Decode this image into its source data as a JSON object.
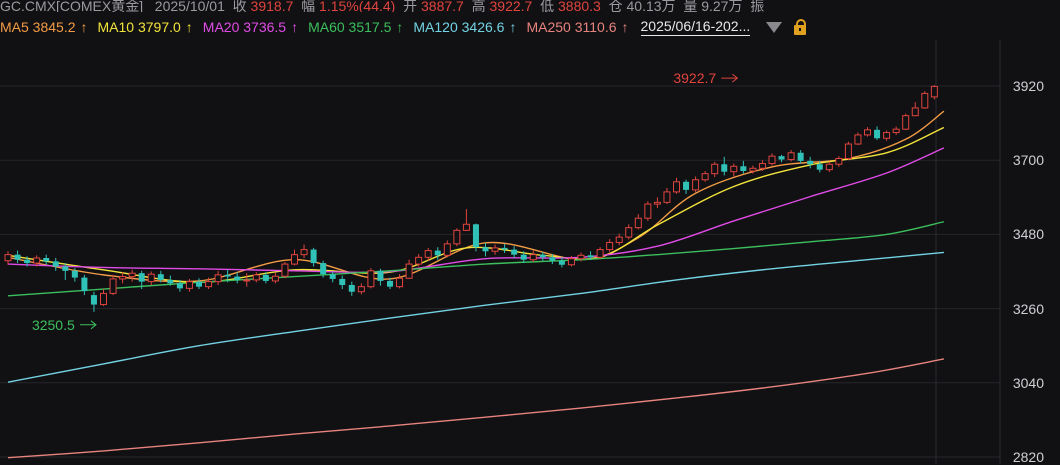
{
  "header": {
    "symbol": "GC.CMX[COMEX黄金]",
    "date": "2025/10/01",
    "close_label": "收",
    "close_value": "3918.7",
    "change_label": "幅",
    "change_value": "1.15%(44.4)",
    "open_label": "开",
    "open_value": "3887.7",
    "high_label": "高",
    "high_value": "3922.7",
    "low_label": "低",
    "low_value": "3880.3",
    "position_label": "仓",
    "position_value": "40.13万",
    "volume_label": "量",
    "volume_value": "9.27万",
    "amplitude_label": "振"
  },
  "legend": [
    {
      "label": "MA5 3845.2",
      "arrow": "↑",
      "color": "#f39c45"
    },
    {
      "label": "MA10 3797.0",
      "arrow": "↑",
      "color": "#f2e43a"
    },
    {
      "label": "MA20 3736.5",
      "arrow": "↑",
      "color": "#e04be6"
    },
    {
      "label": "MA60 3517.5",
      "arrow": "↑",
      "color": "#3cbf5c"
    },
    {
      "label": "MA120 3426.6",
      "arrow": "↑",
      "color": "#73d3e3"
    },
    {
      "label": "MA250 3110.6",
      "arrow": "↑",
      "color": "#e8837e"
    }
  ],
  "toolbar": {
    "date_range": "2025/06/16-202...",
    "dropdown_icon": "chevron-down-icon",
    "lock_icon": "lock-icon"
  },
  "chart_data": {
    "type": "candlestick",
    "y_ticks": [
      "3920",
      "3700",
      "3480",
      "3260",
      "3040",
      "2820"
    ],
    "ylim": [
      2820,
      3920
    ],
    "colors": {
      "up": "#e0443e",
      "down": "#31c2b7"
    },
    "annotations": [
      {
        "text": "3922.7",
        "price": 3922.7,
        "index": 77,
        "color": "#e0443e"
      },
      {
        "text": "3250.5",
        "price": 3250.5,
        "index": 9,
        "color": "#3cbf5c"
      }
    ],
    "candles": [
      [
        3402,
        3420,
        3430,
        3390
      ],
      [
        3420,
        3405,
        3432,
        3395
      ],
      [
        3405,
        3395,
        3415,
        3385
      ],
      [
        3395,
        3410,
        3418,
        3385
      ],
      [
        3410,
        3400,
        3420,
        3390
      ],
      [
        3400,
        3385,
        3410,
        3372
      ],
      [
        3385,
        3372,
        3395,
        3345
      ],
      [
        3372,
        3352,
        3380,
        3340
      ],
      [
        3352,
        3312,
        3360,
        3300
      ],
      [
        3300,
        3272,
        3310,
        3250.5
      ],
      [
        3272,
        3305,
        3318,
        3268
      ],
      [
        3305,
        3348,
        3360,
        3300
      ],
      [
        3348,
        3355,
        3368,
        3335
      ],
      [
        3355,
        3365,
        3375,
        3340
      ],
      [
        3365,
        3340,
        3372,
        3318
      ],
      [
        3340,
        3362,
        3370,
        3330
      ],
      [
        3362,
        3345,
        3372,
        3338
      ],
      [
        3345,
        3335,
        3358,
        3328
      ],
      [
        3335,
        3320,
        3345,
        3310
      ],
      [
        3320,
        3340,
        3348,
        3310
      ],
      [
        3340,
        3325,
        3350,
        3318
      ],
      [
        3325,
        3340,
        3352,
        3318
      ],
      [
        3340,
        3360,
        3372,
        3330
      ],
      [
        3360,
        3355,
        3375,
        3338
      ],
      [
        3355,
        3345,
        3368,
        3335
      ],
      [
        3345,
        3345,
        3365,
        3325
      ],
      [
        3345,
        3360,
        3368,
        3338
      ],
      [
        3360,
        3342,
        3368,
        3335
      ],
      [
        3342,
        3356,
        3366,
        3335
      ],
      [
        3356,
        3392,
        3398,
        3350
      ],
      [
        3392,
        3420,
        3435,
        3388
      ],
      [
        3420,
        3435,
        3450,
        3410
      ],
      [
        3435,
        3395,
        3440,
        3385
      ],
      [
        3395,
        3362,
        3402,
        3352
      ],
      [
        3362,
        3348,
        3370,
        3338
      ],
      [
        3348,
        3330,
        3358,
        3318
      ],
      [
        3330,
        3310,
        3340,
        3298
      ],
      [
        3310,
        3325,
        3335,
        3302
      ],
      [
        3325,
        3372,
        3380,
        3320
      ],
      [
        3372,
        3342,
        3378,
        3328
      ],
      [
        3342,
        3325,
        3352,
        3318
      ],
      [
        3325,
        3350,
        3362,
        3320
      ],
      [
        3350,
        3392,
        3405,
        3348
      ],
      [
        3392,
        3412,
        3422,
        3385
      ],
      [
        3412,
        3432,
        3440,
        3402
      ],
      [
        3432,
        3418,
        3442,
        3405
      ],
      [
        3418,
        3452,
        3462,
        3412
      ],
      [
        3452,
        3492,
        3498,
        3445
      ],
      [
        3492,
        3510,
        3555,
        3490
      ],
      [
        3510,
        3442,
        3512,
        3430
      ],
      [
        3442,
        3430,
        3455,
        3415
      ],
      [
        3430,
        3440,
        3450,
        3420
      ],
      [
        3440,
        3435,
        3452,
        3425
      ],
      [
        3435,
        3420,
        3445,
        3410
      ],
      [
        3420,
        3405,
        3430,
        3395
      ],
      [
        3405,
        3420,
        3432,
        3398
      ],
      [
        3420,
        3412,
        3428,
        3402
      ],
      [
        3412,
        3402,
        3422,
        3392
      ],
      [
        3402,
        3390,
        3412,
        3382
      ],
      [
        3390,
        3408,
        3416,
        3385
      ],
      [
        3408,
        3418,
        3426,
        3400
      ],
      [
        3418,
        3412,
        3430,
        3404
      ],
      [
        3412,
        3435,
        3442,
        3408
      ],
      [
        3435,
        3456,
        3466,
        3428
      ],
      [
        3456,
        3472,
        3482,
        3448
      ],
      [
        3472,
        3500,
        3510,
        3465
      ],
      [
        3500,
        3528,
        3540,
        3495
      ],
      [
        3528,
        3570,
        3578,
        3520
      ],
      [
        3570,
        3575,
        3590,
        3558
      ],
      [
        3575,
        3606,
        3618,
        3570
      ],
      [
        3606,
        3636,
        3648,
        3600
      ],
      [
        3636,
        3612,
        3642,
        3600
      ],
      [
        3612,
        3642,
        3652,
        3605
      ],
      [
        3642,
        3660,
        3668,
        3636
      ],
      [
        3660,
        3688,
        3695,
        3650
      ],
      [
        3688,
        3666,
        3710,
        3655
      ],
      [
        3666,
        3682,
        3690,
        3652
      ],
      [
        3682,
        3668,
        3698,
        3660
      ],
      [
        3668,
        3676,
        3684,
        3660
      ],
      [
        3676,
        3690,
        3700,
        3668
      ],
      [
        3690,
        3712,
        3720,
        3684
      ],
      [
        3712,
        3702,
        3716,
        3694
      ],
      [
        3702,
        3722,
        3730,
        3696
      ],
      [
        3722,
        3698,
        3730,
        3690
      ],
      [
        3698,
        3688,
        3710,
        3676
      ],
      [
        3688,
        3672,
        3698,
        3664
      ],
      [
        3672,
        3688,
        3696,
        3665
      ],
      [
        3688,
        3705,
        3712,
        3680
      ],
      [
        3705,
        3748,
        3755,
        3700
      ],
      [
        3748,
        3775,
        3782,
        3745
      ],
      [
        3775,
        3790,
        3798,
        3770
      ],
      [
        3790,
        3765,
        3800,
        3760
      ],
      [
        3765,
        3782,
        3788,
        3758
      ],
      [
        3782,
        3792,
        3800,
        3775
      ],
      [
        3792,
        3832,
        3838,
        3790
      ],
      [
        3832,
        3855,
        3872,
        3830
      ],
      [
        3855,
        3898,
        3905,
        3852
      ],
      [
        3887.7,
        3918.7,
        3922.7,
        3880.3
      ]
    ],
    "ma_series": [
      {
        "name": "MA5",
        "color": "#f39c45",
        "points": [
          [
            0,
            3412
          ],
          [
            10,
            3360
          ],
          [
            20,
            3342
          ],
          [
            30,
            3405
          ],
          [
            40,
            3348
          ],
          [
            50,
            3455
          ],
          [
            60,
            3406
          ],
          [
            66,
            3470
          ],
          [
            72,
            3602
          ],
          [
            80,
            3680
          ],
          [
            88,
            3705
          ],
          [
            94,
            3762
          ],
          [
            98,
            3845.2
          ]
        ]
      },
      {
        "name": "MA10",
        "color": "#f2e43a",
        "points": [
          [
            0,
            3418
          ],
          [
            10,
            3375
          ],
          [
            20,
            3338
          ],
          [
            30,
            3375
          ],
          [
            40,
            3368
          ],
          [
            48,
            3440
          ],
          [
            56,
            3418
          ],
          [
            62,
            3412
          ],
          [
            68,
            3508
          ],
          [
            76,
            3622
          ],
          [
            84,
            3686
          ],
          [
            92,
            3722
          ],
          [
            98,
            3797.0
          ]
        ]
      },
      {
        "name": "MA20",
        "color": "#e04be6",
        "points": [
          [
            0,
            3392
          ],
          [
            10,
            3382
          ],
          [
            20,
            3378
          ],
          [
            30,
            3372
          ],
          [
            40,
            3370
          ],
          [
            50,
            3408
          ],
          [
            60,
            3412
          ],
          [
            68,
            3445
          ],
          [
            76,
            3520
          ],
          [
            84,
            3592
          ],
          [
            92,
            3662
          ],
          [
            98,
            3736.5
          ]
        ]
      },
      {
        "name": "MA60",
        "color": "#3cbf5c",
        "points": [
          [
            0,
            3298
          ],
          [
            10,
            3318
          ],
          [
            20,
            3338
          ],
          [
            30,
            3355
          ],
          [
            40,
            3372
          ],
          [
            50,
            3392
          ],
          [
            60,
            3405
          ],
          [
            68,
            3420
          ],
          [
            76,
            3438
          ],
          [
            84,
            3458
          ],
          [
            92,
            3480
          ],
          [
            98,
            3517.5
          ]
        ]
      },
      {
        "name": "MA120",
        "color": "#73d3e3",
        "points": [
          [
            0,
            3042
          ],
          [
            10,
            3096
          ],
          [
            20,
            3150
          ],
          [
            30,
            3192
          ],
          [
            40,
            3232
          ],
          [
            50,
            3270
          ],
          [
            60,
            3305
          ],
          [
            70,
            3345
          ],
          [
            80,
            3378
          ],
          [
            90,
            3405
          ],
          [
            98,
            3426.6
          ]
        ]
      },
      {
        "name": "MA250",
        "color": "#e8837e",
        "points": [
          [
            0,
            2818
          ],
          [
            10,
            2838
          ],
          [
            20,
            2862
          ],
          [
            30,
            2888
          ],
          [
            40,
            2912
          ],
          [
            50,
            2938
          ],
          [
            60,
            2965
          ],
          [
            70,
            2995
          ],
          [
            80,
            3028
          ],
          [
            90,
            3068
          ],
          [
            98,
            3110.6
          ]
        ]
      }
    ]
  }
}
